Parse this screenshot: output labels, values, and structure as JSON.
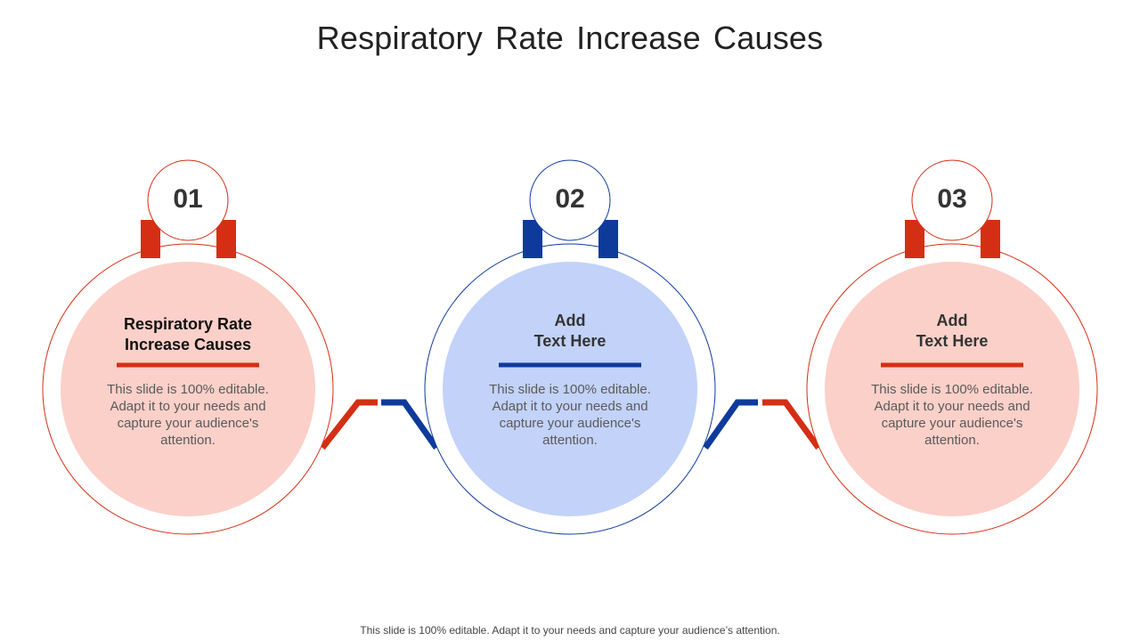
{
  "title": "Respiratory Rate Increase Causes",
  "colors": {
    "red": "#D42F14",
    "blue": "#0E3B9B",
    "pink": "#FBD0C8",
    "light_blue": "#C2D2F9"
  },
  "items": [
    {
      "number": "01",
      "heading_line1": "Respiratory Rate",
      "heading_line2": "Increase Causes",
      "body": "This slide is 100% editable. Adapt it to your needs and capture your audience's attention."
    },
    {
      "number": "02",
      "heading_line1": "Add",
      "heading_line2": "Text Here",
      "body": "This slide is 100% editable. Adapt it to your needs and capture your audience's attention."
    },
    {
      "number": "03",
      "heading_line1": "Add",
      "heading_line2": "Text Here",
      "body": "This slide is 100% editable. Adapt it to your needs and capture your audience's attention."
    }
  ],
  "footer": "This slide is 100% editable. Adapt it to your needs and capture your audience’s attention."
}
